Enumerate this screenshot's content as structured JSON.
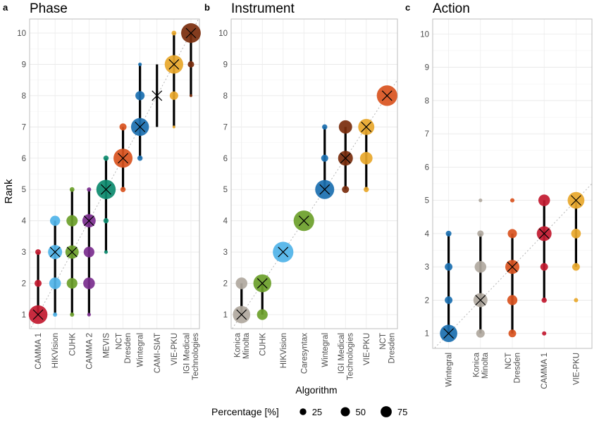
{
  "figure": {
    "y_axis_label": "Rank",
    "x_axis_label": "Algorithm",
    "legend": {
      "title": "Percentage [%]",
      "entries": [
        {
          "label": "25",
          "value": 25
        },
        {
          "label": "50",
          "value": 50
        },
        {
          "label": "75",
          "value": 75
        }
      ]
    }
  },
  "chart_data": [
    {
      "type": "scatter",
      "panel_letter": "a",
      "title": "Phase",
      "ylim": [
        0.55,
        10.45
      ],
      "yticks": [
        1,
        2,
        3,
        4,
        5,
        6,
        7,
        8,
        9,
        10
      ],
      "grid": true,
      "diagonal": "dotted identity line",
      "categories": [
        "CAMMA 1",
        "HIKVision",
        "CUHK",
        "CAMMA 2",
        "MEVIS",
        "NCT\nDresden",
        "Wintegral",
        "CAMI-SIAT",
        "VIE-PKU",
        "IGI Medical\nTechnologies"
      ],
      "series": [
        {
          "color": "#c2192f",
          "median": 1,
          "range": [
            1,
            3
          ],
          "points": [
            {
              "rank": 1,
              "pct": 82
            },
            {
              "rank": 2,
              "pct": 10
            },
            {
              "rank": 3,
              "pct": 6
            }
          ]
        },
        {
          "color": "#4fb3e8",
          "median": 3,
          "range": [
            1,
            4
          ],
          "points": [
            {
              "rank": 1,
              "pct": 3
            },
            {
              "rank": 2,
              "pct": 30
            },
            {
              "rank": 3,
              "pct": 45
            },
            {
              "rank": 4,
              "pct": 22
            }
          ]
        },
        {
          "color": "#6b9f2a",
          "median": 3,
          "range": [
            1,
            5
          ],
          "points": [
            {
              "rank": 1,
              "pct": 3
            },
            {
              "rank": 2,
              "pct": 25
            },
            {
              "rank": 3,
              "pct": 40
            },
            {
              "rank": 4,
              "pct": 28
            },
            {
              "rank": 5,
              "pct": 4
            }
          ]
        },
        {
          "color": "#7b2e8e",
          "median": 4,
          "range": [
            1,
            5
          ],
          "points": [
            {
              "rank": 1,
              "pct": 2
            },
            {
              "rank": 2,
              "pct": 30
            },
            {
              "rank": 3,
              "pct": 25
            },
            {
              "rank": 4,
              "pct": 40
            },
            {
              "rank": 5,
              "pct": 3
            }
          ]
        },
        {
          "color": "#0c8a6e",
          "median": 5,
          "range": [
            3,
            6
          ],
          "points": [
            {
              "rank": 3,
              "pct": 2
            },
            {
              "rank": 4,
              "pct": 5
            },
            {
              "rank": 5,
              "pct": 88
            },
            {
              "rank": 6,
              "pct": 5
            }
          ]
        },
        {
          "color": "#d9531e",
          "median": 6,
          "range": [
            5,
            7
          ],
          "points": [
            {
              "rank": 5,
              "pct": 5
            },
            {
              "rank": 6,
              "pct": 85
            },
            {
              "rank": 7,
              "pct": 10
            }
          ]
        },
        {
          "color": "#1a6fb0",
          "median": 7,
          "range": [
            6,
            9
          ],
          "points": [
            {
              "rank": 6,
              "pct": 5
            },
            {
              "rank": 7,
              "pct": 75
            },
            {
              "rank": 8,
              "pct": 18
            },
            {
              "rank": 9,
              "pct": 2
            }
          ]
        },
        {
          "color": "#000000",
          "median": 8,
          "range": [
            7,
            9
          ],
          "points": []
        },
        {
          "color": "#e8a72a",
          "median": 9,
          "range": [
            7,
            10
          ],
          "points": [
            {
              "rank": 7,
              "pct": 1
            },
            {
              "rank": 8,
              "pct": 15
            },
            {
              "rank": 9,
              "pct": 80
            },
            {
              "rank": 10,
              "pct": 4
            }
          ]
        },
        {
          "color": "#7a2c0c",
          "median": 10,
          "range": [
            8,
            10
          ],
          "points": [
            {
              "rank": 8,
              "pct": 1
            },
            {
              "rank": 9,
              "pct": 8
            },
            {
              "rank": 10,
              "pct": 91
            }
          ]
        }
      ]
    },
    {
      "type": "scatter",
      "panel_letter": "b",
      "title": "Instrument",
      "ylim": [
        0.55,
        10.45
      ],
      "yticks": [
        1,
        2,
        3,
        4,
        5,
        6,
        7,
        8,
        9,
        10
      ],
      "grid": true,
      "diagonal": "dotted identity line",
      "categories": [
        "Konica\nMinolta",
        "CUHK",
        "HIKVision",
        "Caresyntax",
        "Wintegral",
        "IGI Medical\nTechnologies",
        "VIE-PKU",
        "NCT\nDresden"
      ],
      "series": [
        {
          "color": "#b0a89e",
          "median": 1,
          "range": [
            1,
            2
          ],
          "points": [
            {
              "rank": 1,
              "pct": 70
            },
            {
              "rank": 2,
              "pct": 30
            }
          ]
        },
        {
          "color": "#6b9f2a",
          "median": 2,
          "range": [
            1,
            2
          ],
          "points": [
            {
              "rank": 1,
              "pct": 25
            },
            {
              "rank": 2,
              "pct": 75
            }
          ]
        },
        {
          "color": "#4fb3e8",
          "median": 3,
          "range": [
            3,
            3
          ],
          "points": [
            {
              "rank": 3,
              "pct": 100
            }
          ]
        },
        {
          "color": "#6b9f2a",
          "median": 4,
          "range": [
            4,
            4
          ],
          "points": [
            {
              "rank": 4,
              "pct": 100
            }
          ]
        },
        {
          "color": "#1a6fb0",
          "median": 5,
          "range": [
            5,
            7
          ],
          "points": [
            {
              "rank": 5,
              "pct": 85
            },
            {
              "rank": 6,
              "pct": 10
            },
            {
              "rank": 7,
              "pct": 5
            }
          ]
        },
        {
          "color": "#7a2c0c",
          "median": 6,
          "range": [
            5,
            7
          ],
          "points": [
            {
              "rank": 5,
              "pct": 10
            },
            {
              "rank": 6,
              "pct": 50
            },
            {
              "rank": 7,
              "pct": 40
            }
          ]
        },
        {
          "color": "#e8a72a",
          "median": 7,
          "range": [
            5,
            7
          ],
          "points": [
            {
              "rank": 5,
              "pct": 5
            },
            {
              "rank": 6,
              "pct": 35
            },
            {
              "rank": 7,
              "pct": 60
            }
          ]
        },
        {
          "color": "#d9531e",
          "median": 8,
          "range": [
            8,
            8
          ],
          "points": [
            {
              "rank": 8,
              "pct": 100
            }
          ]
        }
      ]
    },
    {
      "type": "scatter",
      "panel_letter": "c",
      "title": "Action",
      "ylim": [
        0.55,
        10.45
      ],
      "yticks": [
        1,
        2,
        3,
        4,
        5,
        6,
        7,
        8,
        9,
        10
      ],
      "grid": true,
      "diagonal": "dotted identity line",
      "categories": [
        "Wintegral",
        "Konica\nMinolta",
        "NCT\nDresden",
        "CAMMA 1",
        "VIE-PKU"
      ],
      "series": [
        {
          "color": "#1a6fb0",
          "median": 1,
          "range": [
            1,
            4
          ],
          "points": [
            {
              "rank": 1,
              "pct": 70
            },
            {
              "rank": 2,
              "pct": 12
            },
            {
              "rank": 3,
              "pct": 12
            },
            {
              "rank": 4,
              "pct": 6
            }
          ]
        },
        {
          "color": "#b0a89e",
          "median": 2,
          "range": [
            1,
            4
          ],
          "points": [
            {
              "rank": 1,
              "pct": 15
            },
            {
              "rank": 2,
              "pct": 45
            },
            {
              "rank": 3,
              "pct": 30
            },
            {
              "rank": 4,
              "pct": 8
            },
            {
              "rank": 5,
              "pct": 2
            }
          ]
        },
        {
          "color": "#d9531e",
          "median": 3,
          "range": [
            1,
            4
          ],
          "points": [
            {
              "rank": 1,
              "pct": 12
            },
            {
              "rank": 2,
              "pct": 22
            },
            {
              "rank": 3,
              "pct": 45
            },
            {
              "rank": 4,
              "pct": 18
            },
            {
              "rank": 5,
              "pct": 3
            }
          ]
        },
        {
          "color": "#c2192f",
          "median": 4,
          "range": [
            2,
            5
          ],
          "points": [
            {
              "rank": 1,
              "pct": 3
            },
            {
              "rank": 2,
              "pct": 5
            },
            {
              "rank": 3,
              "pct": 12
            },
            {
              "rank": 4,
              "pct": 50
            },
            {
              "rank": 5,
              "pct": 30
            }
          ]
        },
        {
          "color": "#e8a72a",
          "median": 5,
          "range": [
            3,
            5
          ],
          "points": [
            {
              "rank": 2,
              "pct": 3
            },
            {
              "rank": 3,
              "pct": 12
            },
            {
              "rank": 4,
              "pct": 20
            },
            {
              "rank": 5,
              "pct": 65
            }
          ]
        }
      ]
    }
  ]
}
